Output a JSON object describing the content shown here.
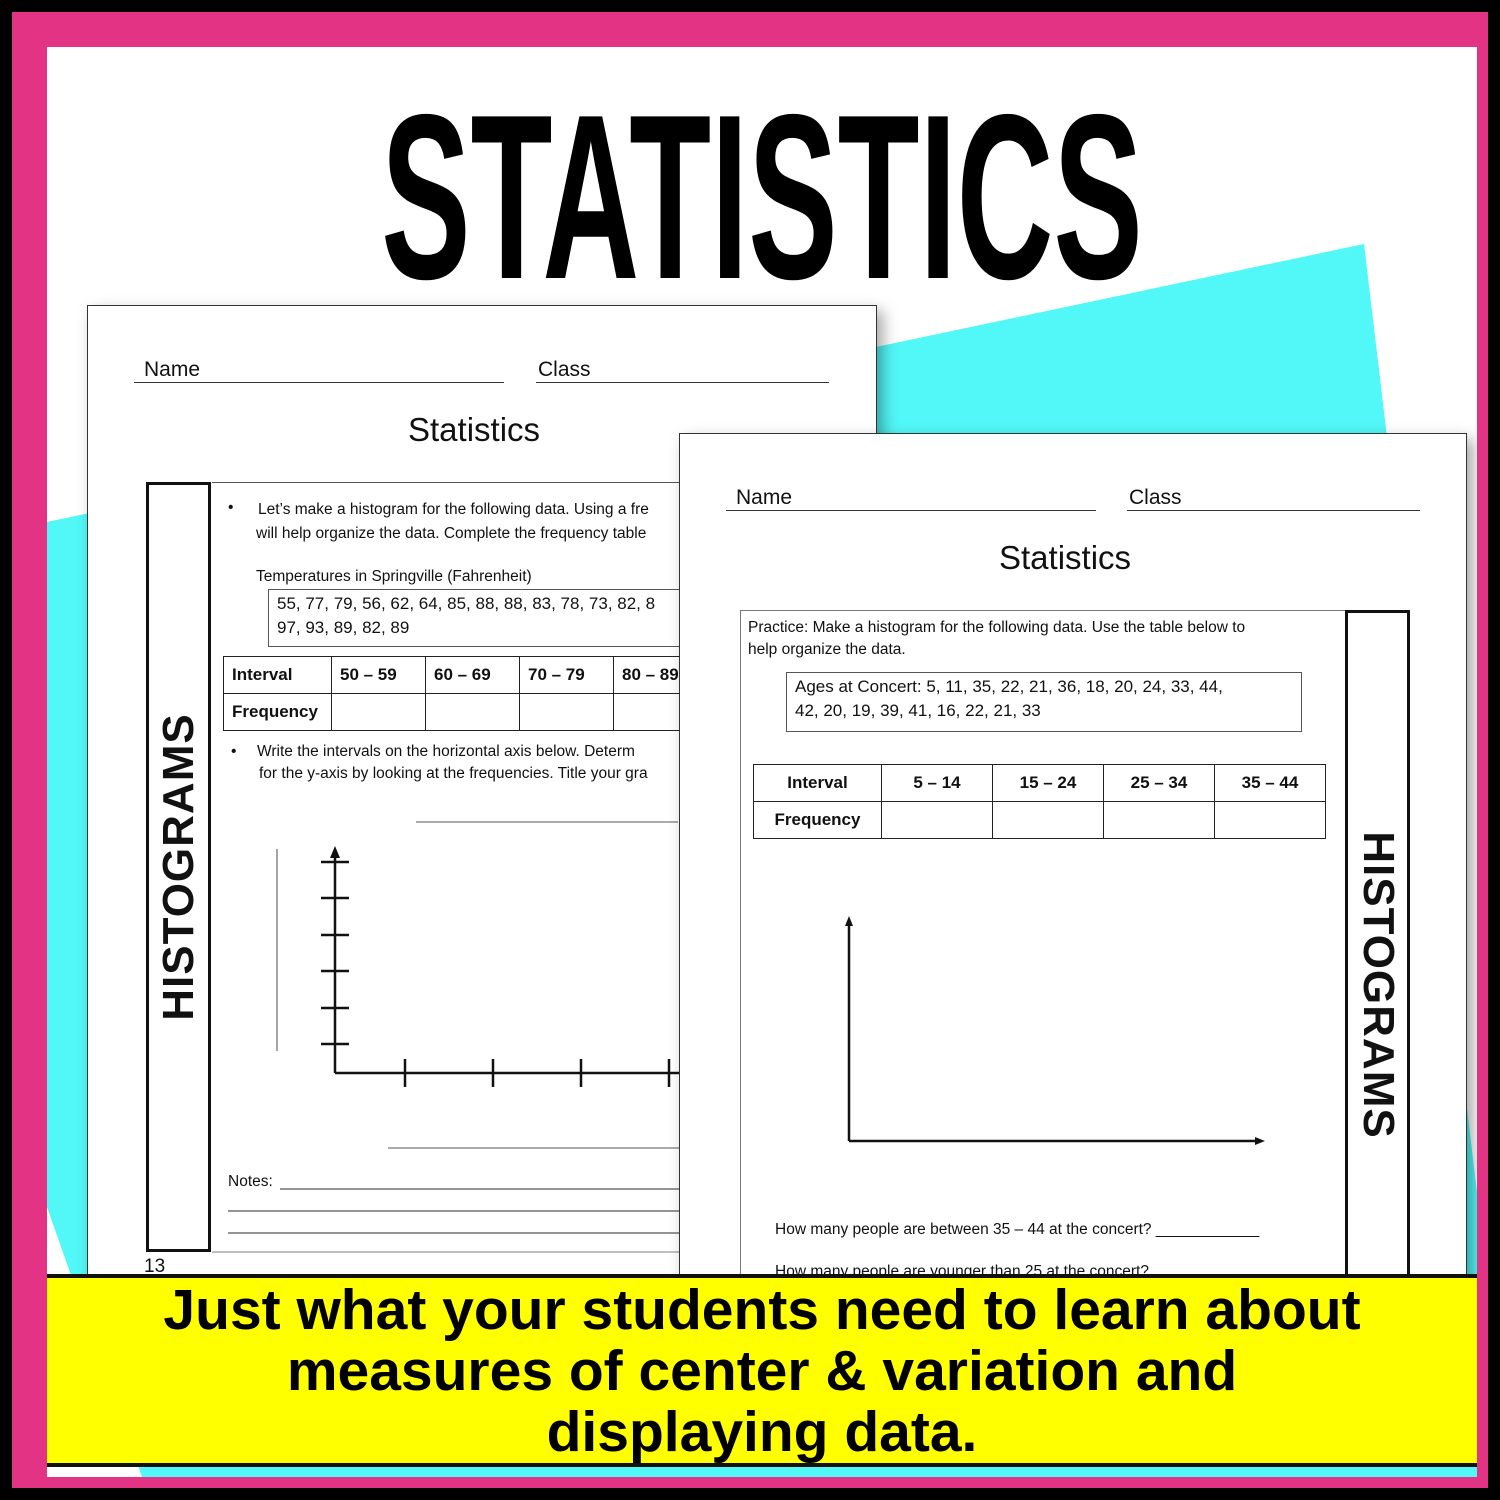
{
  "title": "STATISTICS",
  "colors": {
    "frame": "#e33384",
    "accent_shape": "#52f7f7",
    "banner": "#ffff00"
  },
  "left_page": {
    "name_label": "Name",
    "class_label": "Class",
    "title": "Statistics",
    "side_label": "HISTOGRAMS",
    "instruction1_line1": "Let’s make a histogram for the following data.   Using a fre",
    "instruction1_line2": "will help organize the data.  Complete the frequency table",
    "data_title": "Temperatures  in Springville (Fahrenheit)",
    "data_line1": "55, 77, 79, 56, 62, 64, 85, 88, 88, 83, 78, 73, 82, 8",
    "data_line2": "97, 93, 89, 82, 89",
    "table": {
      "row1": [
        "Interval",
        "50 – 59",
        "60 – 69",
        "70 – 79",
        "80 – 89"
      ],
      "row2_label": "Frequency"
    },
    "instruction2_line1": "Write the intervals on the horizontal axis below.    Determ",
    "instruction2_line2": "for the y-axis by looking at the frequencies.  Title your gra",
    "notes_label": "Notes:",
    "page_number": "13"
  },
  "right_page": {
    "name_label": "Name",
    "class_label": "Class",
    "title": "Statistics",
    "side_label": "HISTOGRAMS",
    "instruction_line1": "Practice:  Make a histogram for the following data.  Use the table below to",
    "instruction_line2": "help organize the data.",
    "data_line1": "Ages at Concert:  5, 11, 35, 22, 21, 36, 18, 20, 24, 33, 44,",
    "data_line2": "42, 20, 19, 39, 41, 16, 22, 21, 33",
    "table": {
      "row1": [
        "Interval",
        "5 – 14",
        "15 – 24",
        "25 – 34",
        "35 – 44"
      ],
      "row2_label": "Frequency"
    },
    "question1": "How many people are between 35 – 44 at the concert? ____________",
    "question2": "How many people are younger than 25 at the concert?"
  },
  "banner": {
    "line1": "Just what your students need to learn about",
    "line2": "measures of center & variation and",
    "line3": "displaying data."
  }
}
